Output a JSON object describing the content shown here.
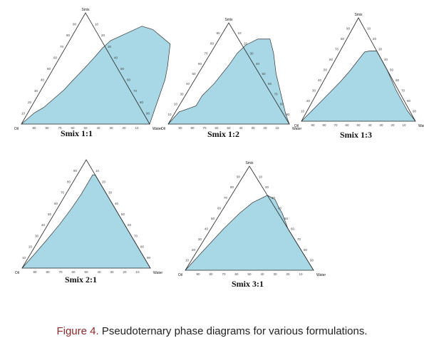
{
  "caption": {
    "label": "Figure 4.",
    "text": " Pseudoternary phase diagrams for various formulations."
  },
  "colors": {
    "region": "#a8d8e6",
    "frame": "#222222"
  },
  "chart_data": [
    {
      "type": "ternary",
      "title": "Smix 1:1",
      "vertices": {
        "top": "Smix",
        "left": "Oil",
        "right": "Water"
      },
      "ticks": [
        10,
        20,
        30,
        40,
        50,
        60,
        70,
        80,
        90
      ],
      "boundary_smix": [
        0,
        10,
        15,
        25,
        31,
        38,
        44,
        50,
        60,
        68,
        75,
        88,
        85,
        72,
        52,
        40,
        30,
        20,
        10,
        0
      ],
      "boundary_water": [
        0,
        5,
        10,
        15,
        18,
        20,
        22,
        24,
        27,
        29,
        32,
        50,
        60,
        80,
        88,
        92,
        94,
        96,
        98,
        100
      ]
    },
    {
      "type": "ternary",
      "title": "Smix 1:2",
      "vertices": {
        "top": "Smix",
        "left": "Oil",
        "right": "Water"
      },
      "ticks": [
        10,
        20,
        30,
        40,
        50,
        60,
        70,
        80,
        90
      ],
      "boundary_smix": [
        0,
        12,
        18,
        28,
        40,
        58,
        70,
        78,
        84,
        84,
        70,
        50,
        30,
        10,
        0
      ],
      "boundary_water": [
        0,
        3,
        14,
        14,
        18,
        21,
        22,
        25,
        32,
        42,
        52,
        64,
        78,
        92,
        100
      ]
    },
    {
      "type": "ternary",
      "title": "Smix 1:3",
      "vertices": {
        "top": "Smix",
        "left": "Oil",
        "right": "Water"
      },
      "ticks": [
        10,
        20,
        30,
        40,
        50,
        60,
        70,
        80,
        90
      ],
      "boundary_smix": [
        0,
        20,
        38,
        48,
        58,
        67,
        68,
        68,
        68,
        50,
        30,
        10,
        0
      ],
      "boundary_water": [
        0,
        8,
        15,
        18,
        20,
        22,
        26,
        30,
        32,
        50,
        68,
        88,
        100
      ]
    },
    {
      "type": "ternary",
      "title": "Smix 2:1",
      "vertices": {
        "top": "",
        "left": "Oil",
        "right": "Water"
      },
      "ticks": [
        10,
        20,
        30,
        40,
        50,
        60,
        70,
        80,
        90
      ],
      "boundary_smix": [
        0,
        12,
        25,
        40,
        55,
        68,
        80,
        86,
        86,
        70,
        50,
        30,
        10,
        0
      ],
      "boundary_water": [
        0,
        3,
        6,
        9,
        11,
        12,
        12,
        12,
        14,
        30,
        50,
        70,
        90,
        100
      ]
    },
    {
      "type": "ternary",
      "title": "Smix 3:1",
      "vertices": {
        "top": "Smix",
        "left": "Oil",
        "right": "Water"
      },
      "ticks": [
        10,
        20,
        30,
        40,
        50,
        60,
        70,
        80,
        90
      ],
      "boundary_smix": [
        0,
        20,
        40,
        55,
        65,
        72,
        68,
        60,
        55,
        50,
        40,
        20,
        0
      ],
      "boundary_water": [
        0,
        5,
        10,
        15,
        20,
        28,
        36,
        43,
        48,
        52,
        60,
        80,
        100
      ]
    }
  ]
}
